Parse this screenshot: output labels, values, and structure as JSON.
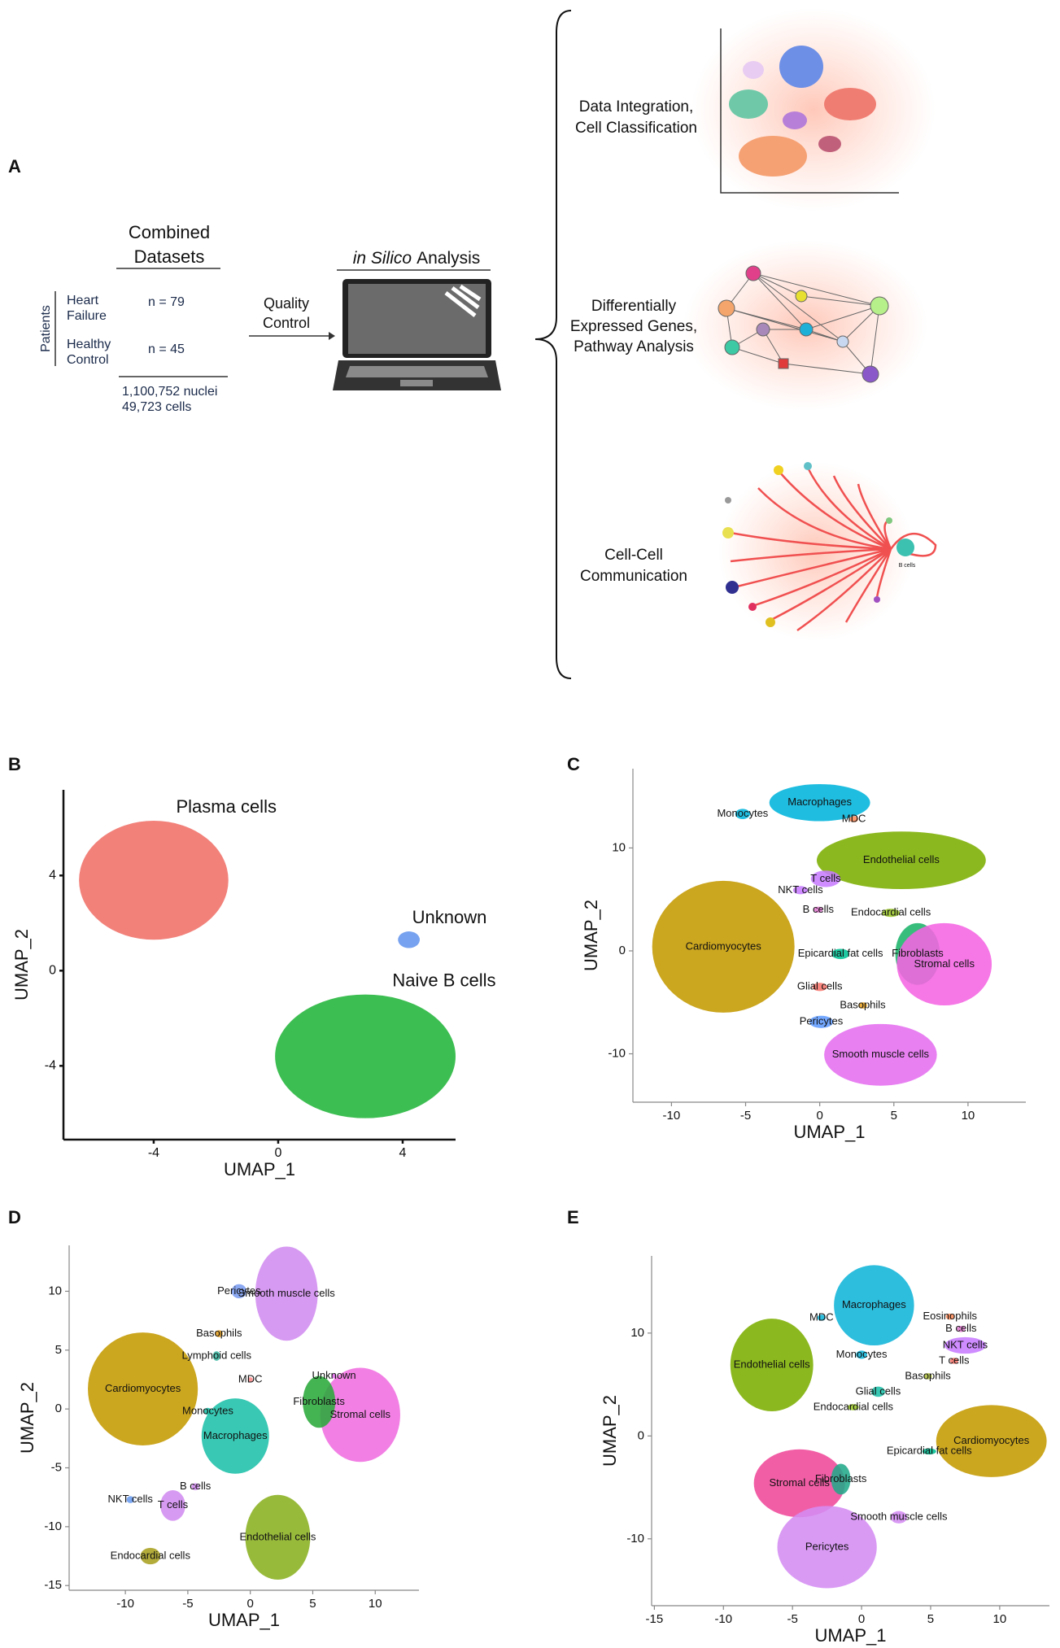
{
  "panel_a": {
    "label": "A",
    "combined_title": [
      "Combined",
      "Datasets"
    ],
    "patients_label": "Patients",
    "groups": [
      {
        "name": [
          "Heart",
          "Failure"
        ],
        "n": "n = 79"
      },
      {
        "name": [
          "Healthy",
          "Control"
        ],
        "n": "n = 45"
      }
    ],
    "totals": [
      "1,100,752 nuclei",
      "49,723 cells"
    ],
    "arrow_label": [
      "Quality",
      "Control"
    ],
    "analysis_title": [
      "in Silico",
      "Analysis"
    ],
    "outputs": [
      [
        "Data Integration,",
        "Cell Classification"
      ],
      [
        "Differentially",
        "Expressed Genes,",
        "Pathway Analysis"
      ],
      [
        "Cell-Cell",
        "Communication"
      ]
    ],
    "icon_label": "B cells"
  },
  "chart_data": [
    {
      "type": "scatter",
      "panel": "B",
      "xlabel": "UMAP_1",
      "ylabel": "UMAP_2",
      "labels": "above",
      "xlim": [
        -6.9,
        5.7
      ],
      "ylim": [
        -7.1,
        7.6
      ],
      "xticks": [
        -4,
        0,
        4
      ],
      "yticks": [
        -4,
        0,
        4
      ],
      "clusters": [
        {
          "name": "Plasma cells",
          "color": "#f07068",
          "x": -4,
          "y": 3.8,
          "spread": [
            2.4,
            2.5
          ]
        },
        {
          "name": "Unknown",
          "color": "#6495ed",
          "x": 4.2,
          "y": 1.3,
          "spread": [
            0.35,
            0.35
          ]
        },
        {
          "name": "Naive B cells",
          "color": "#22b53a",
          "x": 2.8,
          "y": -3.6,
          "spread": [
            2.9,
            2.6
          ]
        }
      ]
    },
    {
      "type": "scatter",
      "panel": "C",
      "xlabel": "UMAP_1",
      "ylabel": "UMAP_2",
      "labels": "center",
      "xlim": [
        -12.6,
        13.9
      ],
      "ylim": [
        -14.7,
        17.7
      ],
      "xticks": [
        -10,
        -5,
        0,
        5,
        10
      ],
      "yticks": [
        -10,
        0,
        10
      ],
      "clusters": [
        {
          "name": "Cardiomyocytes",
          "color": "#c49a00",
          "x": -6.5,
          "y": 0.4,
          "spread": [
            4.8,
            6.4
          ]
        },
        {
          "name": "Macrophages",
          "color": "#00b4dc",
          "x": 0,
          "y": 14.4,
          "spread": [
            3.4,
            1.8
          ]
        },
        {
          "name": "Monocytes",
          "color": "#00b4dc",
          "x": -5.2,
          "y": 13.3,
          "spread": [
            0.5,
            0.5
          ]
        },
        {
          "name": "MDC",
          "color": "#ff8c5a",
          "x": 2.3,
          "y": 12.8,
          "spread": [
            0.3,
            0.3
          ]
        },
        {
          "name": "Endothelial cells",
          "color": "#7cae00",
          "x": 5.5,
          "y": 8.8,
          "spread": [
            5.7,
            2.8
          ]
        },
        {
          "name": "T cells",
          "color": "#c77cff",
          "x": 0.4,
          "y": 7.0,
          "spread": [
            1,
            0.8
          ]
        },
        {
          "name": "NKT cells",
          "color": "#c77cff",
          "x": -1.3,
          "y": 5.9,
          "spread": [
            0.5,
            0.4
          ]
        },
        {
          "name": "B cells",
          "color": "#e07bd0",
          "x": -0.1,
          "y": 4.0,
          "spread": [
            0.3,
            0.3
          ]
        },
        {
          "name": "Endocardial cells",
          "color": "#9cc82a",
          "x": 4.8,
          "y": 3.7,
          "spread": [
            0.6,
            0.4
          ]
        },
        {
          "name": "Fibroblasts",
          "color": "#1db46b",
          "x": 6.6,
          "y": -0.3,
          "spread": [
            1.5,
            3
          ]
        },
        {
          "name": "Stromal cells",
          "color": "#f564e3",
          "x": 8.4,
          "y": -1.3,
          "spread": [
            3.2,
            4
          ]
        },
        {
          "name": "Epicardial fat cells",
          "color": "#00c094",
          "x": 1.4,
          "y": -0.3,
          "spread": [
            0.6,
            0.5
          ]
        },
        {
          "name": "Glial cells",
          "color": "#f8766d",
          "x": 0,
          "y": -3.5,
          "spread": [
            0.5,
            0.4
          ]
        },
        {
          "name": "Basophils",
          "color": "#e6a020",
          "x": 2.9,
          "y": -5.3,
          "spread": [
            0.3,
            0.3
          ]
        },
        {
          "name": "Pericytes",
          "color": "#619cff",
          "x": 0.1,
          "y": -6.9,
          "spread": [
            0.8,
            0.6
          ]
        },
        {
          "name": "Smooth muscle cells",
          "color": "#e56ef0",
          "x": 4.1,
          "y": -10.1,
          "spread": [
            3.8,
            3
          ]
        }
      ]
    },
    {
      "type": "scatter",
      "panel": "D",
      "xlabel": "UMAP_1",
      "ylabel": "UMAP_2",
      "labels": "center",
      "xlim": [
        -14.5,
        13.5
      ],
      "ylim": [
        -15.4,
        13.9
      ],
      "xticks": [
        -10,
        -5,
        0,
        5,
        10
      ],
      "yticks": [
        -15,
        -10,
        -5,
        0,
        5,
        10
      ],
      "clusters": [
        {
          "name": "Cardiomyocytes",
          "color": "#c49a00",
          "x": -8.6,
          "y": 1.7,
          "spread": [
            4.4,
            4.8
          ]
        },
        {
          "name": "Smooth muscle cells",
          "color": "#d28cf0",
          "x": 2.9,
          "y": 9.8,
          "spread": [
            2.5,
            4
          ]
        },
        {
          "name": "Pericytes",
          "color": "#7b9cf0",
          "x": -0.9,
          "y": 10,
          "spread": [
            0.6,
            0.6
          ]
        },
        {
          "name": "Basophils",
          "color": "#e6a020",
          "x": -2.5,
          "y": 6.4,
          "spread": [
            0.3,
            0.3
          ]
        },
        {
          "name": "Lymphoid cells",
          "color": "#39b6a0",
          "x": -2.7,
          "y": 4.5,
          "spread": [
            0.3,
            0.4
          ]
        },
        {
          "name": "MDC",
          "color": "#ff8c8c",
          "x": 0,
          "y": 2.5,
          "spread": [
            0.2,
            0.2
          ]
        },
        {
          "name": "Macrophages",
          "color": "#1cc0a8",
          "x": -1.2,
          "y": -2.3,
          "spread": [
            2.7,
            3.2
          ]
        },
        {
          "name": "Monocytes",
          "color": "#1cc0a8",
          "x": -3.4,
          "y": -0.2,
          "spread": [
            0.3,
            0.3
          ]
        },
        {
          "name": "Unknown",
          "color": "#e56ef0",
          "x": 6.7,
          "y": 2.8,
          "spread": [
            0.2,
            0.2
          ]
        },
        {
          "name": "Stromal cells",
          "color": "#f06ee0",
          "x": 8.8,
          "y": -0.5,
          "spread": [
            3.2,
            4
          ]
        },
        {
          "name": "Fibroblasts",
          "color": "#2aa83a",
          "x": 5.5,
          "y": 0.6,
          "spread": [
            1.3,
            2.2
          ]
        },
        {
          "name": "B cells",
          "color": "#d28cf0",
          "x": -4.4,
          "y": -6.6,
          "spread": [
            0.3,
            0.3
          ]
        },
        {
          "name": "NKT cells",
          "color": "#6a9cf0",
          "x": -9.6,
          "y": -7.7,
          "spread": [
            0.3,
            0.3
          ]
        },
        {
          "name": "T cells",
          "color": "#d28cf0",
          "x": -6.2,
          "y": -8.2,
          "spread": [
            1,
            1.3
          ]
        },
        {
          "name": "Endothelial cells",
          "color": "#8ab020",
          "x": 2.2,
          "y": -10.9,
          "spread": [
            2.6,
            3.6
          ]
        },
        {
          "name": "Endocardial cells",
          "color": "#a8a020",
          "x": -8,
          "y": -12.5,
          "spread": [
            0.8,
            0.7
          ]
        }
      ]
    },
    {
      "type": "scatter",
      "panel": "E",
      "xlabel": "UMAP_1",
      "ylabel": "UMAP_2",
      "labels": "center",
      "xlim": [
        -15.2,
        13.6
      ],
      "ylim": [
        -16.5,
        17.5
      ],
      "xticks": [
        -15,
        -10,
        -5,
        0,
        5,
        10
      ],
      "yticks": [
        -10,
        0,
        10
      ],
      "clusters": [
        {
          "name": "Macrophages",
          "color": "#10b4d8",
          "x": 0.9,
          "y": 12.7,
          "spread": [
            2.9,
            3.9
          ]
        },
        {
          "name": "MDC",
          "color": "#10b4d8",
          "x": -2.9,
          "y": 11.5,
          "spread": [
            0.3,
            0.3
          ]
        },
        {
          "name": "Monocytes",
          "color": "#10b4d8",
          "x": 0,
          "y": 7.9,
          "spread": [
            0.4,
            0.4
          ]
        },
        {
          "name": "Eosinophils",
          "color": "#ff8c5a",
          "x": 6.4,
          "y": 11.6,
          "spread": [
            0.3,
            0.3
          ]
        },
        {
          "name": "B cells",
          "color": "#e07bd0",
          "x": 7.2,
          "y": 10.4,
          "spread": [
            0.3,
            0.3
          ]
        },
        {
          "name": "NKT cells",
          "color": "#c77cff",
          "x": 7.5,
          "y": 8.8,
          "spread": [
            1.5,
            0.8
          ]
        },
        {
          "name": "T cells",
          "color": "#f8766d",
          "x": 6.7,
          "y": 7.3,
          "spread": [
            0.3,
            0.3
          ]
        },
        {
          "name": "Basophils",
          "color": "#b0c040",
          "x": 4.8,
          "y": 5.8,
          "spread": [
            0.3,
            0.3
          ]
        },
        {
          "name": "Glial cells",
          "color": "#1cc0a8",
          "x": 1.2,
          "y": 4.3,
          "spread": [
            0.5,
            0.5
          ]
        },
        {
          "name": "Endocardial cells",
          "color": "#9cc82a",
          "x": -0.6,
          "y": 2.8,
          "spread": [
            0.4,
            0.3
          ]
        },
        {
          "name": "Endothelial cells",
          "color": "#7cae00",
          "x": -6.5,
          "y": 6.9,
          "spread": [
            3,
            4.5
          ]
        },
        {
          "name": "Cardiomyocytes",
          "color": "#c49a00",
          "x": 9.4,
          "y": -0.5,
          "spread": [
            4,
            3.5
          ]
        },
        {
          "name": "Epicardial fat cells",
          "color": "#00c094",
          "x": 4.9,
          "y": -1.5,
          "spread": [
            0.5,
            0.3
          ]
        },
        {
          "name": "Stromal cells",
          "color": "#f0489a",
          "x": -4.5,
          "y": -4.6,
          "spread": [
            3.3,
            3.3
          ]
        },
        {
          "name": "Fibroblasts",
          "color": "#22a88a",
          "x": -1.5,
          "y": -4.2,
          "spread": [
            0.7,
            1.5
          ]
        },
        {
          "name": "Smooth muscle cells",
          "color": "#d48cf2",
          "x": 2.7,
          "y": -7.9,
          "spread": [
            0.6,
            0.6
          ]
        },
        {
          "name": "Pericytes",
          "color": "#d48cf2",
          "x": -2.5,
          "y": -10.8,
          "spread": [
            3.6,
            4
          ]
        }
      ]
    }
  ]
}
